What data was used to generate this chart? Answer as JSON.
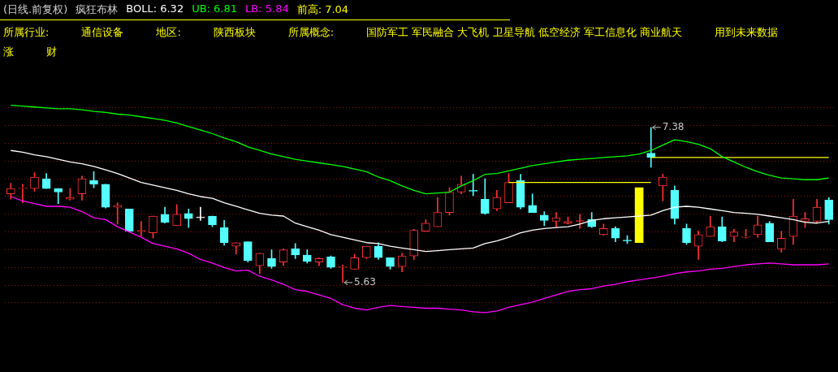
{
  "chart_data": {
    "type": "candlestick",
    "title": "(日线.前复权)",
    "subtitle": "疯狂布林",
    "categories": [
      null,
      null,
      null,
      null,
      null,
      null,
      null,
      null,
      null,
      null,
      null,
      null,
      null,
      null,
      null,
      null,
      null,
      null,
      null,
      null,
      null,
      null,
      null,
      null,
      null,
      null,
      null,
      null,
      null,
      null,
      null,
      null,
      null,
      null,
      null,
      null,
      null,
      null,
      null,
      null,
      null,
      null,
      null,
      null,
      null,
      null,
      null,
      null,
      null,
      null,
      null,
      null,
      null,
      null,
      null,
      null,
      null,
      null,
      null,
      null,
      null,
      null,
      null,
      null,
      null,
      null,
      null,
      null,
      null,
      null
    ],
    "ohlc": [
      [
        6.63,
        6.75,
        6.57,
        6.69
      ],
      [
        6.69,
        6.74,
        6.53,
        6.7
      ],
      [
        6.69,
        6.87,
        6.66,
        6.82
      ],
      [
        6.8,
        6.86,
        6.69,
        6.69
      ],
      [
        6.69,
        6.69,
        6.52,
        6.65
      ],
      [
        6.57,
        6.69,
        6.56,
        6.59
      ],
      [
        6.63,
        6.83,
        6.56,
        6.8
      ],
      [
        6.78,
        6.88,
        6.7,
        6.74
      ],
      [
        6.74,
        6.74,
        6.47,
        6.48
      ],
      [
        6.48,
        6.53,
        6.29,
        6.5
      ],
      [
        6.46,
        6.46,
        6.2,
        6.21
      ],
      [
        6.21,
        6.32,
        6.15,
        6.22
      ],
      [
        6.19,
        6.38,
        6.13,
        6.38
      ],
      [
        6.4,
        6.48,
        6.3,
        6.31
      ],
      [
        6.27,
        6.51,
        6.27,
        6.4
      ],
      [
        6.41,
        6.46,
        6.25,
        6.35
      ],
      [
        6.36,
        6.48,
        6.33,
        6.36
      ],
      [
        6.38,
        6.38,
        6.26,
        6.28
      ],
      [
        6.25,
        6.33,
        6.05,
        6.08
      ],
      [
        6.04,
        6.08,
        5.95,
        6.08
      ],
      [
        6.09,
        6.09,
        5.86,
        5.88
      ],
      [
        5.82,
        5.96,
        5.73,
        5.96
      ],
      [
        5.9,
        6.0,
        5.79,
        5.81
      ],
      [
        5.86,
        6.01,
        5.82,
        6.0
      ],
      [
        6.01,
        6.07,
        5.9,
        5.94
      ],
      [
        5.94,
        6.0,
        5.85,
        5.87
      ],
      [
        5.86,
        5.91,
        5.82,
        5.9
      ],
      [
        5.92,
        5.93,
        5.79,
        5.8
      ],
      [
        5.8,
        5.83,
        5.63,
        5.81
      ],
      [
        5.78,
        5.95,
        5.78,
        5.91
      ],
      [
        5.91,
        6.04,
        5.9,
        6.04
      ],
      [
        6.04,
        6.08,
        5.89,
        5.91
      ],
      [
        5.91,
        5.91,
        5.78,
        5.81
      ],
      [
        5.81,
        5.96,
        5.75,
        5.93
      ],
      [
        5.93,
        6.23,
        5.89,
        6.22
      ],
      [
        6.21,
        6.34,
        6.21,
        6.3
      ],
      [
        6.26,
        6.59,
        6.26,
        6.42
      ],
      [
        6.42,
        6.7,
        6.39,
        6.65
      ],
      [
        6.65,
        6.83,
        6.63,
        6.74
      ],
      [
        6.67,
        6.85,
        6.61,
        6.66
      ],
      [
        6.57,
        6.8,
        6.4,
        6.41
      ],
      [
        6.46,
        6.67,
        6.44,
        6.59
      ],
      [
        6.53,
        6.86,
        6.53,
        6.76
      ],
      [
        6.78,
        6.85,
        6.46,
        6.48
      ],
      [
        6.5,
        6.63,
        6.42,
        6.42
      ],
      [
        6.39,
        6.43,
        6.27,
        6.33
      ],
      [
        6.32,
        6.42,
        6.25,
        6.36
      ],
      [
        6.3,
        6.37,
        6.29,
        6.32
      ],
      [
        6.32,
        6.4,
        6.24,
        6.32
      ],
      [
        6.34,
        6.42,
        6.25,
        6.26
      ],
      [
        6.17,
        6.29,
        6.16,
        6.24
      ],
      [
        6.24,
        6.26,
        6.09,
        6.13
      ],
      [
        6.1,
        6.16,
        6.07,
        6.1
      ],
      null,
      [
        7.09,
        7.38,
        6.93,
        7.04
      ],
      [
        6.72,
        6.85,
        6.55,
        6.82
      ],
      [
        6.67,
        6.72,
        6.29,
        6.35
      ],
      [
        6.24,
        6.29,
        6.06,
        6.08
      ],
      [
        6.04,
        6.21,
        5.89,
        6.17
      ],
      [
        6.15,
        6.38,
        6.15,
        6.26
      ],
      [
        6.26,
        6.37,
        6.09,
        6.1
      ],
      [
        6.15,
        6.23,
        6.09,
        6.2
      ],
      [
        6.14,
        6.23,
        6.13,
        6.15
      ],
      [
        6.17,
        6.38,
        6.14,
        6.28
      ],
      [
        6.3,
        6.32,
        6.09,
        6.09
      ],
      [
        6.01,
        6.21,
        5.97,
        6.13
      ],
      [
        6.15,
        6.57,
        6.06,
        6.38
      ],
      [
        6.32,
        6.42,
        6.25,
        6.35
      ],
      [
        6.32,
        6.57,
        6.3,
        6.48
      ],
      [
        6.56,
        6.59,
        6.29,
        6.34
      ]
    ],
    "colors": [
      "#ff3232",
      "#ff3232",
      "#ff3232",
      "#54ffff",
      "#54ffff",
      "#ff3232",
      "#ff3232",
      "#54ffff",
      "#54ffff",
      "#ff3232",
      "#54ffff",
      "#ff3232",
      "#ff3232",
      "#54ffff",
      "#ff3232",
      "#54ffff",
      "#ffffff",
      "#54ffff",
      "#54ffff",
      "#ff3232",
      "#54ffff",
      "#ff3232",
      "#54ffff",
      "#ff3232",
      "#54ffff",
      "#54ffff",
      "#ff3232",
      "#54ffff",
      "#ff3232",
      "#ff3232",
      "#ff3232",
      "#54ffff",
      "#54ffff",
      "#ff3232",
      "#ff3232",
      "#ff3232",
      "#ff3232",
      "#ff3232",
      "#ff3232",
      "#54ffff",
      "#54ffff",
      "#ff3232",
      "#ff3232",
      "#54ffff",
      "#54ffff",
      "#54ffff",
      "#ff3232",
      "#ff3232",
      "#ff3232",
      "#54ffff",
      "#ff3232",
      "#54ffff",
      "#54ffff",
      null,
      "#54ffff",
      "#ff3232",
      "#54ffff",
      "#54ffff",
      "#ff3232",
      "#ff3232",
      "#54ffff",
      "#ff3232",
      "#ff3232",
      "#ff3232",
      "#54ffff",
      "#ff3232",
      "#ff3232",
      "#ff3232",
      "#ff3232",
      "#54ffff"
    ],
    "series": [
      {
        "type": "line",
        "name": "BOLL: 6.32",
        "color": "#ffffff",
        "values": [
          7.12,
          7.1,
          7.07,
          7.05,
          7.02,
          6.99,
          6.97,
          6.94,
          6.9,
          6.86,
          6.81,
          6.76,
          6.73,
          6.7,
          6.67,
          6.63,
          6.6,
          6.58,
          6.53,
          6.49,
          6.45,
          6.41,
          6.39,
          6.38,
          6.3,
          6.26,
          6.22,
          6.17,
          6.14,
          6.11,
          6.08,
          6.07,
          6.04,
          6.02,
          6.0,
          5.98,
          5.99,
          6.0,
          6.01,
          6.02,
          6.07,
          6.1,
          6.14,
          6.19,
          6.22,
          6.24,
          6.25,
          6.26,
          6.29,
          6.33,
          6.35,
          6.36,
          6.37,
          6.38,
          6.39,
          6.44,
          6.48,
          6.49,
          6.48,
          6.46,
          6.44,
          6.42,
          6.41,
          6.4,
          6.38,
          6.36,
          6.34,
          6.31,
          6.3,
          6.32
        ]
      },
      {
        "type": "line",
        "name": "UB: 6.81",
        "color": "#00ff00",
        "values": [
          7.63,
          7.62,
          7.61,
          7.6,
          7.59,
          7.59,
          7.58,
          7.56,
          7.55,
          7.53,
          7.52,
          7.5,
          7.48,
          7.46,
          7.43,
          7.39,
          7.35,
          7.31,
          7.26,
          7.22,
          7.16,
          7.12,
          7.08,
          7.05,
          7.02,
          7.0,
          6.98,
          6.96,
          6.94,
          6.91,
          6.88,
          6.82,
          6.78,
          6.72,
          6.67,
          6.63,
          6.64,
          6.65,
          6.72,
          6.78,
          6.85,
          6.86,
          6.89,
          6.92,
          6.95,
          6.97,
          6.99,
          7.01,
          7.02,
          7.03,
          7.04,
          7.05,
          7.06,
          7.08,
          7.12,
          7.18,
          7.24,
          7.22,
          7.19,
          7.14,
          7.05,
          6.99,
          6.93,
          6.88,
          6.84,
          6.81,
          6.8,
          6.79,
          6.79,
          6.81
        ]
      },
      {
        "type": "line",
        "name": "LB: 5.84",
        "color": "#ff00ff",
        "values": [
          6.6,
          6.55,
          6.52,
          6.49,
          6.49,
          6.48,
          6.43,
          6.36,
          6.34,
          6.26,
          6.2,
          6.14,
          6.07,
          6.04,
          6.01,
          5.96,
          5.89,
          5.85,
          5.8,
          5.76,
          5.77,
          5.7,
          5.66,
          5.61,
          5.55,
          5.53,
          5.49,
          5.45,
          5.38,
          5.34,
          5.32,
          5.35,
          5.37,
          5.36,
          5.35,
          5.34,
          5.34,
          5.33,
          5.32,
          5.3,
          5.29,
          5.31,
          5.35,
          5.38,
          5.41,
          5.45,
          5.49,
          5.53,
          5.55,
          5.56,
          5.59,
          5.61,
          5.64,
          5.66,
          5.68,
          5.7,
          5.73,
          5.75,
          5.76,
          5.78,
          5.79,
          5.81,
          5.83,
          5.84,
          5.85,
          5.84,
          5.83,
          5.83,
          5.83,
          5.84
        ]
      },
      {
        "type": "line",
        "name": "前高: 7.04",
        "color": "#ffff00",
        "values": [
          null,
          null,
          null,
          null,
          null,
          null,
          null,
          null,
          null,
          null,
          null,
          null,
          null,
          null,
          null,
          null,
          null,
          null,
          null,
          null,
          null,
          null,
          null,
          null,
          null,
          null,
          null,
          null,
          null,
          null,
          null,
          null,
          null,
          null,
          null,
          null,
          null,
          null,
          null,
          null,
          null,
          null,
          null,
          null,
          null,
          null,
          null,
          null,
          null,
          null,
          null,
          null,
          null,
          null,
          7.04,
          7.04,
          7.04,
          7.04,
          7.04,
          7.04,
          7.04,
          7.04,
          7.04,
          7.04,
          7.04,
          7.04,
          7.04,
          7.04,
          7.04,
          7.04
        ]
      },
      {
        "type": "line",
        "color": "#ffff00",
        "values": [
          null,
          null,
          null,
          null,
          null,
          null,
          null,
          null,
          null,
          null,
          null,
          null,
          null,
          null,
          null,
          null,
          null,
          null,
          null,
          null,
          null,
          null,
          null,
          null,
          null,
          null,
          null,
          null,
          null,
          null,
          null,
          null,
          null,
          null,
          null,
          null,
          null,
          null,
          null,
          null,
          null,
          null,
          6.76,
          6.76,
          6.76,
          6.76,
          6.76,
          6.76,
          6.76,
          6.76,
          6.76,
          6.76,
          6.76,
          6.76,
          6.76,
          null,
          null,
          null,
          null,
          null,
          null,
          null,
          null,
          null,
          null,
          null,
          null,
          null,
          null,
          null
        ]
      },
      {
        "type": "bar",
        "color": "#ffff00",
        "base": [
          null,
          null,
          null,
          null,
          null,
          null,
          null,
          null,
          null,
          null,
          null,
          null,
          null,
          null,
          null,
          null,
          null,
          null,
          null,
          null,
          null,
          null,
          null,
          null,
          null,
          null,
          null,
          null,
          null,
          null,
          null,
          null,
          null,
          null,
          null,
          null,
          null,
          null,
          null,
          null,
          null,
          null,
          null,
          null,
          null,
          null,
          null,
          null,
          null,
          null,
          null,
          null,
          null,
          6.08,
          null,
          null,
          null,
          null,
          null,
          null,
          null,
          null,
          null,
          null,
          null,
          null,
          null,
          null,
          null,
          null
        ],
        "values": [
          null,
          null,
          null,
          null,
          null,
          null,
          null,
          null,
          null,
          null,
          null,
          null,
          null,
          null,
          null,
          null,
          null,
          null,
          null,
          null,
          null,
          null,
          null,
          null,
          null,
          null,
          null,
          null,
          null,
          null,
          null,
          null,
          null,
          null,
          null,
          null,
          null,
          null,
          null,
          null,
          null,
          null,
          null,
          null,
          null,
          null,
          null,
          null,
          null,
          null,
          null,
          null,
          null,
          0.62,
          null,
          null,
          null,
          null,
          null,
          null,
          null,
          null,
          null,
          null,
          null,
          null,
          null,
          null,
          null,
          null
        ]
      }
    ],
    "yticks": [
      {
        "value": 5.4,
        "label": null
      },
      {
        "value": 5.6,
        "label": null
      },
      {
        "value": 5.8,
        "label": null
      },
      {
        "value": 6.0,
        "label": null
      },
      {
        "value": 6.2,
        "label": null
      },
      {
        "value": 6.4,
        "label": null
      },
      {
        "value": 6.6,
        "label": null
      },
      {
        "value": 6.8,
        "label": null
      },
      {
        "value": 7.0,
        "label": null
      },
      {
        "value": 7.2,
        "label": null
      },
      {
        "value": 7.4,
        "label": null
      },
      {
        "value": 7.6,
        "label": null
      }
    ],
    "grid": "y",
    "legend": "top left",
    "annotations": [
      "所属行业:",
      "通信设备",
      "地区:",
      "陕西板块",
      "所属概念:",
      "国防军工 军民融合 大飞机 卫星导航 低空经济 军工信息化 商业航天",
      "7.38",
      "5.63",
      "用到未来数据",
      "涨",
      "财"
    ]
  }
}
